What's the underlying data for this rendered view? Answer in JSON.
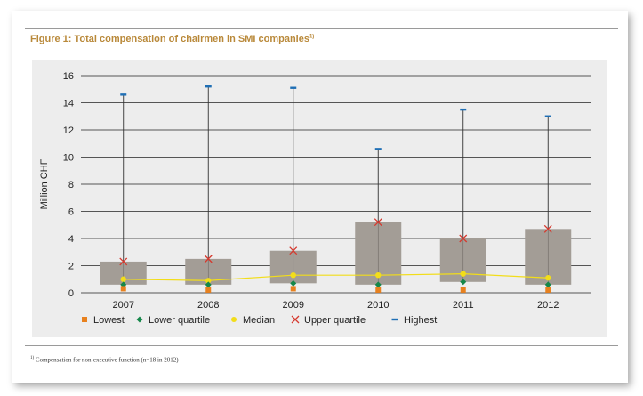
{
  "figure": {
    "title": "Figure 1: Total compensation of chairmen in SMI companies",
    "title_footnote_mark": "1)",
    "footnote_mark": "1)",
    "footnote": "Compensation for non-executive function (n=18 in 2012)"
  },
  "colors": {
    "title": "#b9893a",
    "box": "#a39d96",
    "lowest": "#e8811e",
    "lower_quartile": "#15874a",
    "median": "#f2dd1a",
    "upper_quartile": "#d6392e",
    "highest": "#1f6fb5",
    "panel": "#ededed"
  },
  "chart_data": {
    "type": "box",
    "title": "Figure 1: Total compensation of chairmen in SMI companies",
    "xlabel": "",
    "ylabel": "Million CHF",
    "ylim": [
      0,
      16
    ],
    "yticks": [
      0,
      2,
      4,
      6,
      8,
      10,
      12,
      14,
      16
    ],
    "grid": true,
    "legend_position": "bottom",
    "categories": [
      "2007",
      "2008",
      "2009",
      "2010",
      "2011",
      "2012"
    ],
    "series": [
      {
        "name": "Lowest",
        "marker": "square",
        "values": [
          0.3,
          0.2,
          0.3,
          0.2,
          0.2,
          0.2
        ]
      },
      {
        "name": "Lower quartile",
        "marker": "diamond",
        "values": [
          0.6,
          0.6,
          0.7,
          0.6,
          0.8,
          0.6
        ]
      },
      {
        "name": "Median",
        "marker": "circle",
        "values": [
          1.0,
          0.9,
          1.3,
          1.3,
          1.4,
          1.1
        ]
      },
      {
        "name": "Upper quartile",
        "marker": "x",
        "values": [
          2.3,
          2.5,
          3.1,
          5.2,
          4.0,
          4.7
        ]
      },
      {
        "name": "Highest",
        "marker": "dash",
        "values": [
          14.6,
          15.2,
          15.1,
          10.6,
          13.5,
          13.0
        ]
      }
    ]
  }
}
